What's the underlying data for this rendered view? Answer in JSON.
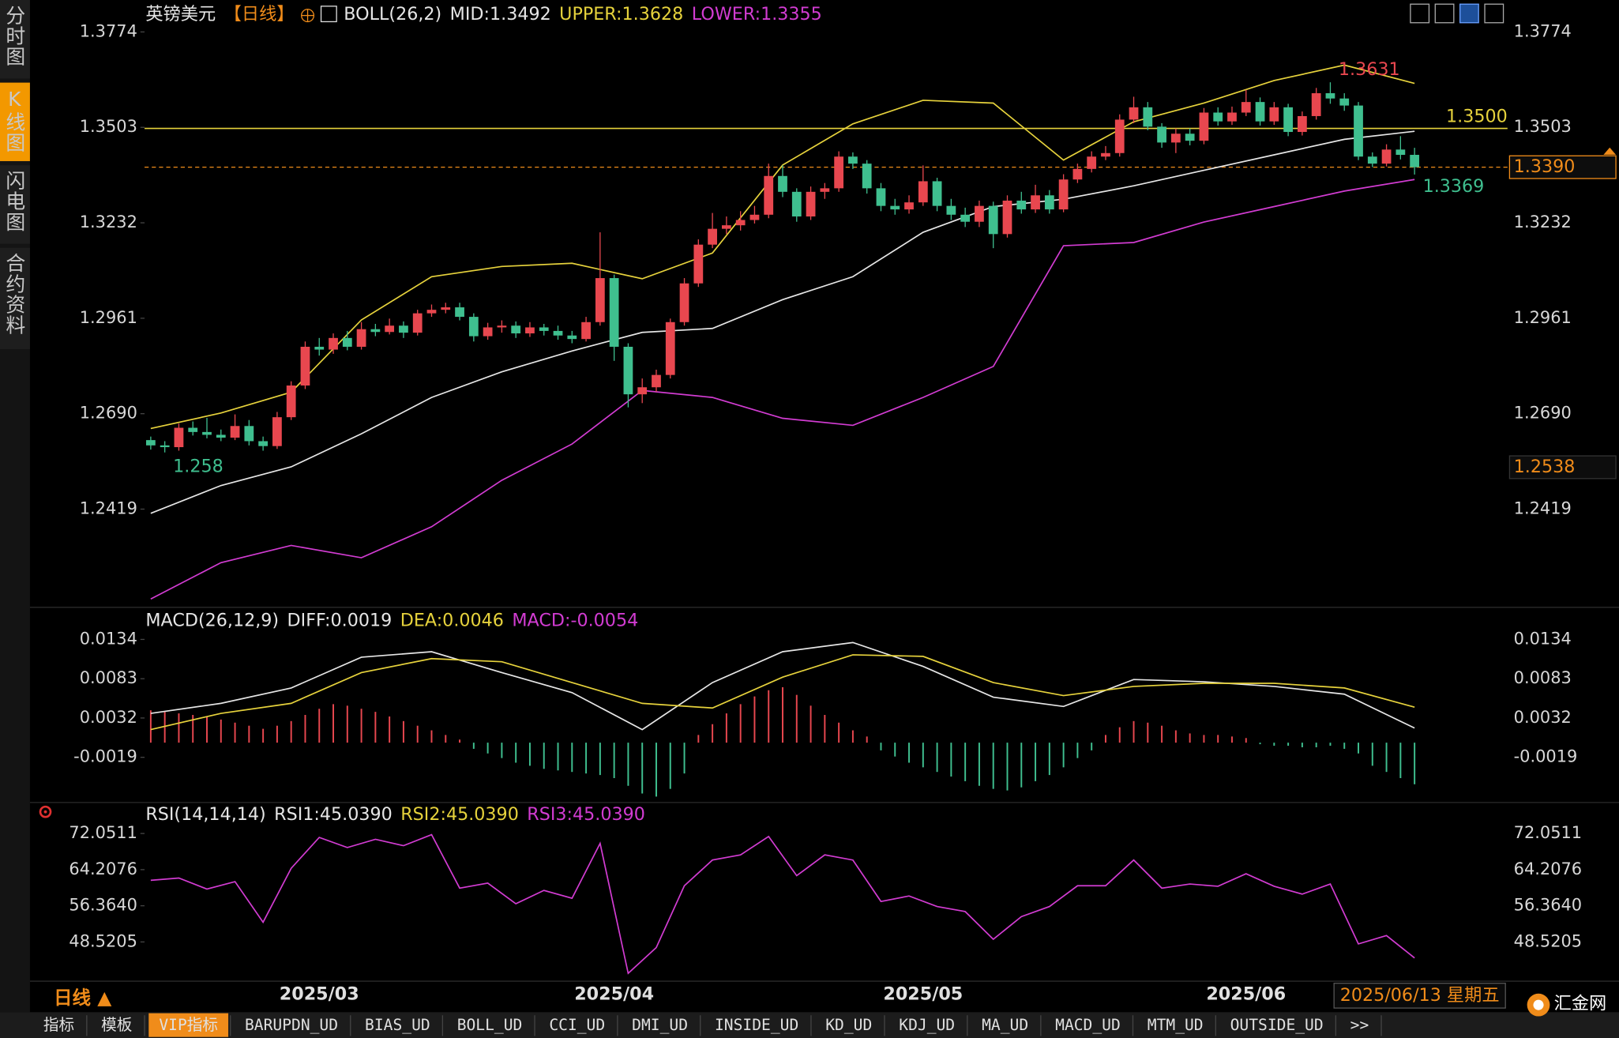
{
  "sidebar": [
    {
      "label": "分时图",
      "active": false
    },
    {
      "label": "K线图",
      "active": true
    },
    {
      "label": "闪电图",
      "active": false
    },
    {
      "label": "合约资料",
      "active": false
    }
  ],
  "footer": {
    "period": "日线 ▲",
    "cursor_date": "2025/06/13 星期五",
    "logo": "汇金网",
    "tabs": [
      {
        "label": "指标",
        "active": false
      },
      {
        "label": "模板",
        "active": false
      },
      {
        "label": "VIP指标",
        "active": true
      },
      {
        "label": "BARUPDN_UD",
        "active": false
      },
      {
        "label": "BIAS_UD",
        "active": false
      },
      {
        "label": "BOLL_UD",
        "active": false
      },
      {
        "label": "CCI_UD",
        "active": false
      },
      {
        "label": "DMI_UD",
        "active": false
      },
      {
        "label": "INSIDE_UD",
        "active": false
      },
      {
        "label": "KD_UD",
        "active": false
      },
      {
        "label": "KDJ_UD",
        "active": false
      },
      {
        "label": "MA_UD",
        "active": false
      },
      {
        "label": "MACD_UD",
        "active": false
      },
      {
        "label": "MTM_UD",
        "active": false
      },
      {
        "label": "OUTSIDE_UD",
        "active": false
      },
      {
        "label": ">>",
        "active": false
      }
    ]
  },
  "chart_data": [
    {
      "type": "candlestick",
      "title": "英镑美元",
      "period": "【日线】",
      "indicator": "BOLL(26,2)",
      "up_color": "#e8474f",
      "down_color": "#3fbf8f",
      "categories": [
        null,
        null,
        null,
        null,
        null,
        null,
        null,
        null,
        null,
        null,
        null,
        null,
        "2025/03",
        null,
        null,
        null,
        null,
        null,
        null,
        null,
        null,
        null,
        null,
        null,
        null,
        null,
        null,
        null,
        null,
        null,
        null,
        null,
        null,
        "2025/04",
        null,
        null,
        null,
        null,
        null,
        null,
        null,
        null,
        null,
        null,
        null,
        null,
        null,
        null,
        null,
        null,
        null,
        null,
        null,
        null,
        null,
        "2025/05",
        null,
        null,
        null,
        null,
        null,
        null,
        null,
        null,
        null,
        null,
        null,
        null,
        null,
        null,
        null,
        null,
        null,
        null,
        null,
        null,
        null,
        null,
        "2025/06",
        null,
        null,
        null,
        null,
        null,
        null,
        null,
        null,
        null,
        null,
        null,
        null
      ],
      "candles": {
        "open": [
          1.2615,
          1.26,
          1.2595,
          1.265,
          1.2638,
          1.263,
          1.2622,
          1.2655,
          1.2612,
          1.2598,
          1.268,
          1.277,
          1.288,
          1.2872,
          1.2905,
          1.288,
          1.293,
          1.2922,
          1.294,
          1.292,
          1.2975,
          1.2985,
          1.2992,
          1.2965,
          1.291,
          1.2935,
          1.294,
          1.2918,
          1.2935,
          1.2925,
          1.2912,
          1.2902,
          1.295,
          1.3075,
          1.288,
          1.2745,
          1.2765,
          1.28,
          1.295,
          1.306,
          1.317,
          1.3215,
          1.3225,
          1.324,
          1.3255,
          1.3365,
          1.332,
          1.325,
          1.332,
          1.333,
          1.342,
          1.34,
          1.333,
          1.328,
          1.327,
          1.329,
          1.335,
          1.328,
          1.3255,
          1.3235,
          1.328,
          1.32,
          1.3295,
          1.327,
          1.331,
          1.327,
          1.3355,
          1.3385,
          1.342,
          1.343,
          1.3525,
          1.356,
          1.3505,
          1.346,
          1.3485,
          1.3465,
          1.3545,
          1.352,
          1.3545,
          1.3575,
          1.352,
          1.356,
          1.349,
          1.3535,
          1.36,
          1.3585,
          1.3565,
          1.342,
          1.34,
          1.344,
          1.3425
        ],
        "high": [
          1.2625,
          1.2612,
          1.2662,
          1.2668,
          1.2678,
          1.2645,
          1.2688,
          1.2672,
          1.2625,
          1.2695,
          1.2782,
          1.2895,
          1.2905,
          1.2918,
          1.2925,
          1.295,
          1.2945,
          1.296,
          1.2952,
          1.2985,
          1.3,
          1.3005,
          1.3005,
          1.2975,
          1.2948,
          1.2955,
          1.2952,
          1.295,
          1.2945,
          1.294,
          1.2925,
          1.2965,
          1.3205,
          1.3085,
          1.289,
          1.279,
          1.2815,
          1.296,
          1.3075,
          1.3185,
          1.326,
          1.325,
          1.3265,
          1.328,
          1.34,
          1.3395,
          1.333,
          1.3335,
          1.3345,
          1.3435,
          1.3432,
          1.341,
          1.3345,
          1.33,
          1.331,
          1.3395,
          1.336,
          1.33,
          1.3275,
          1.3295,
          1.3292,
          1.331,
          1.332,
          1.334,
          1.3325,
          1.337,
          1.34,
          1.3435,
          1.345,
          1.354,
          1.359,
          1.3575,
          1.3515,
          1.35,
          1.35,
          1.3558,
          1.356,
          1.3562,
          1.361,
          1.3588,
          1.3575,
          1.357,
          1.3548,
          1.3615,
          1.3631,
          1.36,
          1.3575,
          1.3432,
          1.3455,
          1.3478,
          1.3445
        ],
        "low": [
          1.2588,
          1.258,
          1.2585,
          1.2628,
          1.262,
          1.2612,
          1.2615,
          1.26,
          1.2585,
          1.259,
          1.2672,
          1.276,
          1.2855,
          1.286,
          1.287,
          1.2872,
          1.291,
          1.2915,
          1.2905,
          1.2912,
          1.2965,
          1.2975,
          1.2955,
          1.2895,
          1.29,
          1.292,
          1.2905,
          1.2908,
          1.2912,
          1.29,
          1.289,
          1.2895,
          1.294,
          1.284,
          1.2708,
          1.272,
          1.2752,
          1.279,
          1.294,
          1.305,
          1.316,
          1.32,
          1.321,
          1.323,
          1.3245,
          1.3305,
          1.3235,
          1.324,
          1.33,
          1.332,
          1.3385,
          1.3315,
          1.3265,
          1.3255,
          1.3258,
          1.328,
          1.3265,
          1.324,
          1.322,
          1.322,
          1.316,
          1.319,
          1.3258,
          1.326,
          1.3258,
          1.3262,
          1.3345,
          1.3375,
          1.341,
          1.342,
          1.3515,
          1.3495,
          1.3445,
          1.343,
          1.3452,
          1.3455,
          1.3508,
          1.351,
          1.3535,
          1.3508,
          1.351,
          1.3478,
          1.348,
          1.3525,
          1.357,
          1.355,
          1.341,
          1.339,
          1.3392,
          1.3412,
          1.3369
        ],
        "close": [
          1.26,
          1.2595,
          1.265,
          1.2638,
          1.263,
          1.2622,
          1.2655,
          1.2612,
          1.2598,
          1.268,
          1.277,
          1.288,
          1.2872,
          1.2905,
          1.288,
          1.293,
          1.2922,
          1.294,
          1.292,
          1.2975,
          1.2985,
          1.2992,
          1.2965,
          1.291,
          1.2935,
          1.294,
          1.2918,
          1.2935,
          1.2925,
          1.2912,
          1.2902,
          1.295,
          1.3075,
          1.288,
          1.2745,
          1.2765,
          1.28,
          1.295,
          1.306,
          1.317,
          1.3215,
          1.3225,
          1.324,
          1.3255,
          1.3365,
          1.332,
          1.325,
          1.332,
          1.333,
          1.342,
          1.34,
          1.333,
          1.328,
          1.327,
          1.329,
          1.335,
          1.328,
          1.3255,
          1.3235,
          1.328,
          1.32,
          1.3295,
          1.327,
          1.331,
          1.327,
          1.3355,
          1.3385,
          1.342,
          1.343,
          1.3525,
          1.356,
          1.3505,
          1.346,
          1.3485,
          1.3465,
          1.3545,
          1.352,
          1.3545,
          1.3575,
          1.352,
          1.356,
          1.349,
          1.3535,
          1.36,
          1.3585,
          1.3565,
          1.342,
          1.34,
          1.344,
          1.3425,
          1.339
        ]
      },
      "series": [
        {
          "name": "MID:1.3492",
          "color": "#e6e6e6",
          "x": [
            0,
            5,
            10,
            15,
            20,
            25,
            30,
            35,
            40,
            45,
            50,
            55,
            60,
            65,
            70,
            75,
            80,
            85,
            90
          ],
          "values": [
            1.2407,
            1.2486,
            1.2539,
            1.2633,
            1.2736,
            1.2809,
            1.2868,
            1.2921,
            1.2932,
            1.3014,
            1.3079,
            1.3205,
            1.3278,
            1.3299,
            1.3337,
            1.3381,
            1.3425,
            1.3469,
            1.3492
          ]
        },
        {
          "name": "UPPER:1.3628",
          "color": "#e6d23c",
          "x": [
            0,
            5,
            10,
            15,
            20,
            25,
            30,
            35,
            40,
            45,
            50,
            55,
            60,
            65,
            70,
            75,
            80,
            85,
            90
          ],
          "values": [
            1.2648,
            1.2692,
            1.2751,
            1.2956,
            1.3079,
            1.3108,
            1.3117,
            1.3073,
            1.3146,
            1.3396,
            1.3513,
            1.358,
            1.3572,
            1.341,
            1.3519,
            1.3572,
            1.3636,
            1.368,
            1.3628
          ]
        },
        {
          "name": "LOWER:1.3355",
          "color": "#d23cd2",
          "x": [
            0,
            5,
            10,
            15,
            20,
            25,
            30,
            35,
            40,
            45,
            50,
            55,
            60,
            65,
            70,
            75,
            80,
            85,
            90
          ],
          "values": [
            1.2164,
            1.2267,
            1.2316,
            1.2281,
            1.2369,
            1.2501,
            1.2604,
            1.2756,
            1.2736,
            1.2677,
            1.2657,
            1.2736,
            1.2824,
            1.3167,
            1.3176,
            1.3234,
            1.3278,
            1.3322,
            1.3355
          ]
        }
      ],
      "ylim": [
        1.2149,
        1.385
      ],
      "yticks": [
        1.3774,
        1.3503,
        1.3232,
        1.2961,
        {
          "value": 1.269,
          "label": "1.2690"
        },
        1.2419
      ],
      "hline": {
        "value": 1.35,
        "label": "1.3500",
        "color": "#e6d23c"
      },
      "price_markers": [
        {
          "value": 1.339,
          "label": "1.3390"
        },
        {
          "value": 1.2538,
          "label": "1.2538"
        }
      ]
    },
    {
      "type": "macd",
      "title": "MACD(26,12,9)",
      "ylim": [
        -0.0075,
        0.0173
      ],
      "yticks": [
        0.0134,
        0.0083,
        0.0032,
        -0.0019
      ],
      "series": [
        {
          "name": "DIFF:0.0019",
          "color": "#e6e6e6",
          "x": [
            0,
            5,
            10,
            15,
            20,
            25,
            30,
            35,
            40,
            45,
            50,
            55,
            60,
            65,
            70,
            75,
            80,
            85,
            90
          ],
          "values": [
            0.0038,
            0.0051,
            0.0071,
            0.0111,
            0.0118,
            0.0091,
            0.0065,
            0.0017,
            0.0078,
            0.0118,
            0.013,
            0.0099,
            0.0059,
            0.0047,
            0.0082,
            0.0079,
            0.0073,
            0.0063,
            0.0019
          ]
        },
        {
          "name": "DEA:0.0046",
          "color": "#e6d23c",
          "x": [
            0,
            5,
            10,
            15,
            20,
            25,
            30,
            35,
            40,
            45,
            50,
            55,
            60,
            65,
            70,
            75,
            80,
            85,
            90
          ],
          "values": [
            0.0017,
            0.0038,
            0.0051,
            0.0091,
            0.0109,
            0.0105,
            0.0078,
            0.0051,
            0.0045,
            0.0085,
            0.0114,
            0.0112,
            0.0078,
            0.0061,
            0.0073,
            0.0077,
            0.0077,
            0.0071,
            0.0046
          ]
        }
      ],
      "histogram": {
        "name": "MACD:-0.0054",
        "color": "#d23cd2",
        "up_color": "#e8474f",
        "down_color": "#3fbf8f",
        "values": [
          0.0042,
          0.004,
          0.0038,
          0.0036,
          0.0034,
          0.003,
          0.0026,
          0.0022,
          0.0018,
          0.0022,
          0.0028,
          0.0036,
          0.0044,
          0.005,
          0.0048,
          0.0044,
          0.004,
          0.0034,
          0.0028,
          0.0022,
          0.0016,
          0.001,
          0.0004,
          -0.0008,
          -0.0014,
          -0.002,
          -0.0026,
          -0.003,
          -0.0034,
          -0.0036,
          -0.0038,
          -0.004,
          -0.0042,
          -0.0046,
          -0.0056,
          -0.0066,
          -0.007,
          -0.006,
          -0.004,
          0.001,
          0.0024,
          0.0038,
          0.005,
          0.006,
          0.0068,
          0.0072,
          0.0062,
          0.0048,
          0.0036,
          0.0026,
          0.0016,
          0.0008,
          -0.001,
          -0.0018,
          -0.0026,
          -0.0032,
          -0.0038,
          -0.0044,
          -0.005,
          -0.0056,
          -0.006,
          -0.0062,
          -0.0058,
          -0.005,
          -0.0042,
          -0.0032,
          -0.002,
          -0.001,
          0.001,
          0.002,
          0.0028,
          0.0026,
          0.0022,
          0.0016,
          0.0012,
          0.001,
          0.001,
          0.0008,
          0.0006,
          -0.0002,
          -0.0004,
          -0.0004,
          -0.0006,
          -0.0006,
          -0.0004,
          -0.0008,
          -0.0014,
          -0.003,
          -0.0038,
          -0.0046,
          -0.0054
        ]
      }
    },
    {
      "type": "rsi",
      "title": "RSI(14,14,14)",
      "ylim": [
        40.0,
        78.1
      ],
      "yticks": [
        72.0511,
        64.2076,
        {
          "value": 56.364,
          "label": "56.3640"
        },
        48.5205
      ],
      "legend": [
        {
          "name": "RSI1:45.0390",
          "color": "#e6e6e6"
        },
        {
          "name": "RSI2:45.0390",
          "color": "#e6d23c"
        }
      ],
      "series": [
        {
          "name": "RSI3:45.0390",
          "color": "#d23cd2",
          "x": [
            0,
            2,
            4,
            6,
            8,
            10,
            12,
            14,
            16,
            18,
            20,
            22,
            24,
            26,
            28,
            30,
            32,
            34,
            36,
            38,
            40,
            42,
            44,
            46,
            48,
            50,
            52,
            54,
            56,
            58,
            60,
            62,
            64,
            66,
            68,
            70,
            72,
            74,
            76,
            78,
            80,
            82,
            84,
            86,
            88,
            90
          ],
          "values": [
            61.9,
            62.4,
            60.0,
            61.6,
            52.8,
            64.5,
            71.2,
            69.0,
            70.8,
            69.4,
            71.8,
            60.2,
            61.3,
            56.8,
            59.7,
            58.0,
            69.9,
            41.7,
            47.3,
            60.7,
            66.3,
            67.4,
            71.4,
            62.9,
            67.4,
            66.3,
            57.3,
            58.5,
            56.2,
            55.1,
            49.1,
            54.0,
            56.2,
            60.7,
            60.7,
            66.3,
            60.2,
            61.1,
            60.6,
            63.3,
            60.6,
            58.9,
            61.1,
            48.1,
            49.9,
            45.039
          ]
        }
      ]
    }
  ]
}
